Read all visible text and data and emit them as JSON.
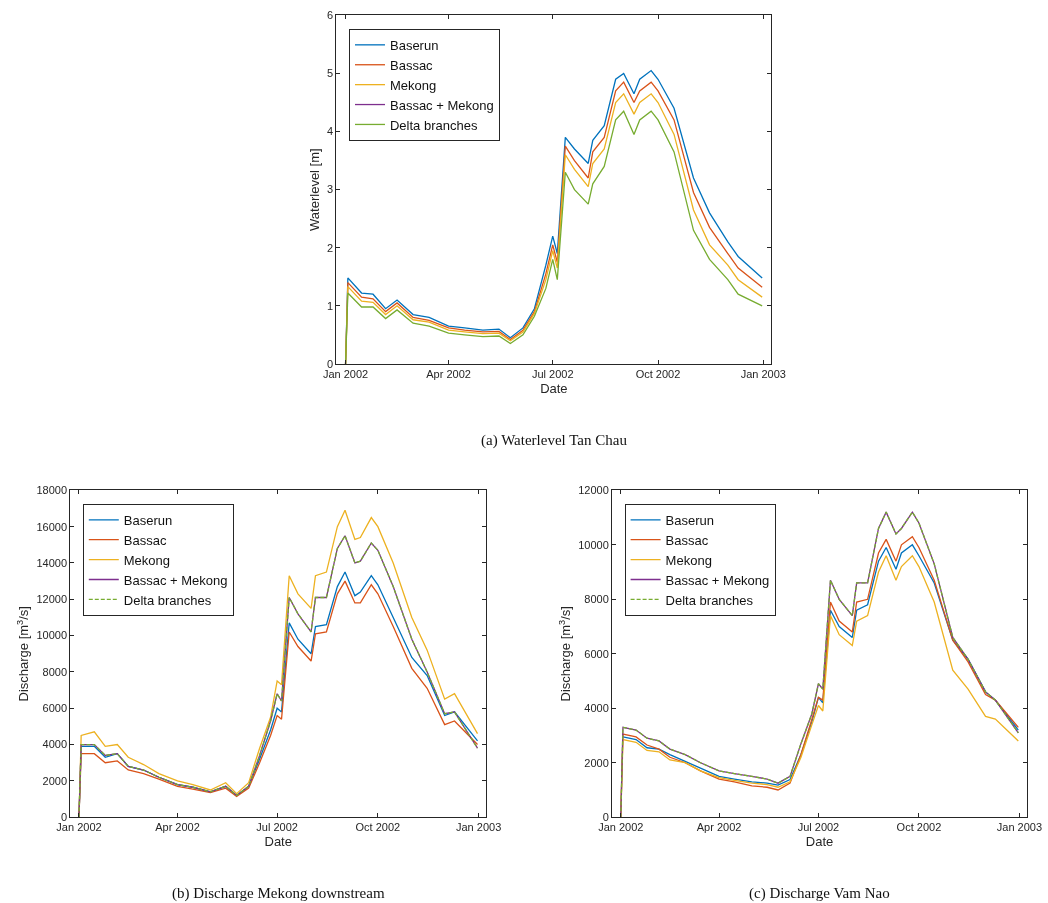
{
  "chart_data": [
    {
      "type": "line",
      "xlabel": "Date",
      "ylabel": "Waterlevel [m]",
      "annotations": [
        "(a) Waterlevel Tan Chau"
      ],
      "legend": "top left",
      "xlim": [
        "2001-12-24",
        "2003-01-08"
      ],
      "xticks": [
        {
          "value": "2002-01-01",
          "label": "Jan 2002"
        },
        {
          "value": "2002-04-01",
          "label": "Apr 2002"
        },
        {
          "value": "2002-07-01",
          "label": "Jul 2002"
        },
        {
          "value": "2002-10-01",
          "label": "Oct 2002"
        },
        {
          "value": "2003-01-01",
          "label": "Jan 2003"
        }
      ],
      "ylim": [
        0,
        6
      ],
      "yticks": [
        0,
        1,
        2,
        3,
        4,
        5,
        6
      ],
      "x": [
        "2002-01-01",
        "2002-01-03",
        "2002-01-15",
        "2002-01-25",
        "2002-02-05",
        "2002-02-15",
        "2002-03-01",
        "2002-03-15",
        "2002-04-01",
        "2002-04-15",
        "2002-05-01",
        "2002-05-15",
        "2002-05-25",
        "2002-06-05",
        "2002-06-15",
        "2002-06-25",
        "2002-07-01",
        "2002-07-05",
        "2002-07-12",
        "2002-07-20",
        "2002-08-01",
        "2002-08-05",
        "2002-08-15",
        "2002-08-25",
        "2002-09-01",
        "2002-09-10",
        "2002-09-15",
        "2002-09-25",
        "2002-10-01",
        "2002-10-15",
        "2002-11-01",
        "2002-11-15",
        "2002-12-01",
        "2002-12-10",
        "2002-12-31"
      ],
      "series": [
        {
          "name": "Baserun",
          "color": "#0072bd",
          "values": [
            0,
            1.48,
            1.22,
            1.2,
            0.95,
            1.1,
            0.85,
            0.8,
            0.65,
            0.62,
            0.58,
            0.6,
            0.45,
            0.62,
            0.95,
            1.7,
            2.2,
            1.9,
            3.9,
            3.7,
            3.45,
            3.85,
            4.1,
            4.9,
            5.0,
            4.65,
            4.9,
            5.05,
            4.9,
            4.4,
            3.2,
            2.6,
            2.1,
            1.85,
            1.48
          ]
        },
        {
          "name": "Bassac",
          "color": "#d95319",
          "values": [
            0,
            1.4,
            1.15,
            1.12,
            0.9,
            1.05,
            0.8,
            0.75,
            0.62,
            0.58,
            0.55,
            0.56,
            0.42,
            0.58,
            0.9,
            1.55,
            2.05,
            1.75,
            3.75,
            3.5,
            3.2,
            3.65,
            3.9,
            4.7,
            4.85,
            4.5,
            4.7,
            4.85,
            4.7,
            4.2,
            2.95,
            2.35,
            1.9,
            1.65,
            1.32
          ]
        },
        {
          "name": "Mekong",
          "color": "#edb120",
          "values": [
            0,
            1.33,
            1.08,
            1.06,
            0.85,
            1.0,
            0.76,
            0.72,
            0.58,
            0.55,
            0.52,
            0.53,
            0.4,
            0.55,
            0.87,
            1.45,
            1.95,
            1.65,
            3.6,
            3.35,
            3.05,
            3.45,
            3.7,
            4.5,
            4.65,
            4.3,
            4.5,
            4.65,
            4.5,
            3.95,
            2.65,
            2.05,
            1.7,
            1.45,
            1.15
          ]
        },
        {
          "name": "Bassac + Mekong",
          "color": "#7e2f8e",
          "values": [
            null,
            null,
            null,
            null,
            null,
            null,
            null,
            null,
            null,
            null,
            null,
            null,
            null,
            null,
            null,
            null,
            null,
            null,
            null,
            null,
            null,
            null,
            null,
            null,
            null,
            null,
            null,
            null,
            null,
            null,
            null,
            null,
            null,
            null,
            null
          ]
        },
        {
          "name": "Delta branches",
          "color": "#77ac30",
          "values": [
            0,
            1.22,
            0.98,
            0.98,
            0.78,
            0.93,
            0.7,
            0.65,
            0.53,
            0.5,
            0.47,
            0.48,
            0.35,
            0.5,
            0.82,
            1.3,
            1.8,
            1.45,
            3.3,
            3.0,
            2.75,
            3.1,
            3.4,
            4.2,
            4.35,
            3.95,
            4.2,
            4.35,
            4.2,
            3.65,
            2.3,
            1.8,
            1.45,
            1.2,
            1.0
          ]
        }
      ]
    },
    {
      "type": "line",
      "xlabel": "Date",
      "ylabel": "Discharge [m$^{3}$/s]",
      "annotations": [
        "(b) Discharge Mekong downstream"
      ],
      "legend": "top left",
      "xlim": [
        "2001-12-24",
        "2003-01-08"
      ],
      "xticks": [
        {
          "value": "2002-01-01",
          "label": "Jan 2002"
        },
        {
          "value": "2002-04-01",
          "label": "Apr 2002"
        },
        {
          "value": "2002-07-01",
          "label": "Jul 2002"
        },
        {
          "value": "2002-10-01",
          "label": "Oct 2002"
        },
        {
          "value": "2003-01-01",
          "label": "Jan 2003"
        }
      ],
      "ylim": [
        0,
        18000
      ],
      "yticks": [
        0,
        2000,
        4000,
        6000,
        8000,
        10000,
        12000,
        14000,
        16000,
        18000
      ],
      "x": [
        "2002-01-01",
        "2002-01-03",
        "2002-01-15",
        "2002-01-25",
        "2002-02-05",
        "2002-02-15",
        "2002-03-01",
        "2002-03-15",
        "2002-04-01",
        "2002-04-15",
        "2002-05-01",
        "2002-05-15",
        "2002-05-25",
        "2002-06-05",
        "2002-06-15",
        "2002-06-25",
        "2002-07-01",
        "2002-07-05",
        "2002-07-12",
        "2002-07-20",
        "2002-08-01",
        "2002-08-05",
        "2002-08-15",
        "2002-08-25",
        "2002-09-01",
        "2002-09-10",
        "2002-09-15",
        "2002-09-25",
        "2002-10-01",
        "2002-10-15",
        "2002-11-01",
        "2002-11-15",
        "2002-12-01",
        "2002-12-10",
        "2002-12-31"
      ],
      "series": [
        {
          "name": "Baserun",
          "color": "#0072bd",
          "values": [
            0,
            3900,
            3900,
            3300,
            3500,
            2800,
            2600,
            2200,
            1800,
            1650,
            1400,
            1700,
            1200,
            1700,
            3200,
            4800,
            6000,
            5800,
            10700,
            9800,
            9000,
            10500,
            10600,
            12700,
            13500,
            12200,
            12400,
            13300,
            12800,
            11000,
            8800,
            7800,
            5600,
            5800,
            4200
          ]
        },
        {
          "name": "Bassac",
          "color": "#d95319",
          "values": [
            0,
            3500,
            3500,
            3000,
            3100,
            2600,
            2400,
            2100,
            1700,
            1550,
            1350,
            1600,
            1150,
            1600,
            3000,
            4500,
            5600,
            5400,
            10200,
            9400,
            8600,
            10100,
            10200,
            12300,
            13000,
            11800,
            11800,
            12800,
            12300,
            10500,
            8200,
            7100,
            5100,
            5300,
            4000
          ]
        },
        {
          "name": "Mekong",
          "color": "#edb120",
          "values": [
            0,
            4500,
            4700,
            3900,
            4000,
            3300,
            2900,
            2400,
            2000,
            1800,
            1500,
            1900,
            1300,
            1900,
            3800,
            5500,
            7500,
            7300,
            13300,
            12300,
            11500,
            13300,
            13500,
            16000,
            16900,
            15300,
            15400,
            16500,
            16000,
            14000,
            11000,
            9200,
            6500,
            6800,
            4600
          ]
        },
        {
          "name": "Bassac + Mekong",
          "color": "#7e2f8e",
          "values": [
            0,
            4000,
            4000,
            3400,
            3500,
            2800,
            2600,
            2200,
            1800,
            1650,
            1400,
            1700,
            1200,
            1700,
            3400,
            5300,
            6800,
            6400,
            12100,
            11200,
            10200,
            12100,
            12100,
            14800,
            15500,
            14000,
            14100,
            15100,
            14700,
            12700,
            9800,
            8000,
            5700,
            5800,
            3800
          ]
        },
        {
          "name": "Delta branches",
          "color": "#77ac30",
          "line_style": "dashed",
          "values": [
            0,
            4000,
            4000,
            3400,
            3500,
            2800,
            2600,
            2200,
            1800,
            1650,
            1400,
            1700,
            1200,
            1700,
            3400,
            5300,
            6800,
            6400,
            12100,
            11200,
            10200,
            12100,
            12100,
            14800,
            15500,
            14000,
            14100,
            15100,
            14700,
            12700,
            9800,
            8000,
            5700,
            5800,
            3800
          ]
        }
      ]
    },
    {
      "type": "line",
      "xlabel": "Date",
      "ylabel": "Discharge [m$^{3}$/s]",
      "annotations": [
        "(c) Discharge Vam Nao"
      ],
      "legend": "top left",
      "xlim": [
        "2001-12-24",
        "2003-01-08"
      ],
      "xticks": [
        {
          "value": "2002-01-01",
          "label": "Jan 2002"
        },
        {
          "value": "2002-04-01",
          "label": "Apr 2002"
        },
        {
          "value": "2002-07-01",
          "label": "Jul 2002"
        },
        {
          "value": "2002-10-01",
          "label": "Oct 2002"
        },
        {
          "value": "2003-01-01",
          "label": "Jan 2003"
        }
      ],
      "ylim": [
        0,
        12000
      ],
      "yticks": [
        0,
        2000,
        4000,
        6000,
        8000,
        10000,
        12000
      ],
      "x": [
        "2002-01-01",
        "2002-01-03",
        "2002-01-15",
        "2002-01-25",
        "2002-02-05",
        "2002-02-15",
        "2002-03-01",
        "2002-03-15",
        "2002-04-01",
        "2002-04-15",
        "2002-05-01",
        "2002-05-15",
        "2002-05-25",
        "2002-06-05",
        "2002-06-15",
        "2002-06-25",
        "2002-07-01",
        "2002-07-05",
        "2002-07-12",
        "2002-07-20",
        "2002-08-01",
        "2002-08-05",
        "2002-08-15",
        "2002-08-25",
        "2002-09-01",
        "2002-09-10",
        "2002-09-15",
        "2002-09-25",
        "2002-10-01",
        "2002-10-15",
        "2002-11-01",
        "2002-11-15",
        "2002-12-01",
        "2002-12-10",
        "2002-12-31"
      ],
      "series": [
        {
          "name": "Baserun",
          "color": "#0072bd",
          "values": [
            null,
            2950,
            2850,
            2550,
            2500,
            2300,
            2050,
            1800,
            1500,
            1400,
            1300,
            1250,
            1180,
            1380,
            2300,
            3500,
            4400,
            4200,
            7600,
            7000,
            6600,
            7600,
            7800,
            9400,
            9900,
            9100,
            9700,
            10000,
            9600,
            8600,
            6500,
            5800,
            4600,
            4300,
            3200
          ]
        },
        {
          "name": "Bassac",
          "color": "#d95319",
          "values": [
            0,
            3050,
            2950,
            2650,
            2500,
            2200,
            2000,
            1700,
            1400,
            1300,
            1150,
            1100,
            1000,
            1250,
            2300,
            3600,
            4400,
            4300,
            7900,
            7200,
            6800,
            7900,
            8000,
            9700,
            10200,
            9400,
            10000,
            10300,
            9900,
            8700,
            6500,
            5700,
            4500,
            4300,
            3300
          ]
        },
        {
          "name": "Mekong",
          "color": "#edb120",
          "values": [
            0,
            2850,
            2750,
            2450,
            2400,
            2100,
            2000,
            1700,
            1450,
            1350,
            1250,
            1200,
            1100,
            1300,
            2200,
            3400,
            4100,
            3900,
            7400,
            6700,
            6300,
            7200,
            7400,
            9000,
            9600,
            8700,
            9200,
            9600,
            9200,
            7900,
            5400,
            4700,
            3700,
            3600,
            2800
          ]
        },
        {
          "name": "Bassac + Mekong",
          "color": "#7e2f8e",
          "values": [
            0,
            3300,
            3200,
            2900,
            2800,
            2500,
            2300,
            2000,
            1700,
            1600,
            1500,
            1400,
            1250,
            1500,
            2700,
            3800,
            4900,
            4700,
            8700,
            8000,
            7400,
            8600,
            8600,
            10600,
            11200,
            10400,
            10600,
            11200,
            10800,
            9300,
            6600,
            5800,
            4600,
            4300,
            3100
          ]
        },
        {
          "name": "Delta branches",
          "color": "#77ac30",
          "line_style": "dashed",
          "values": [
            0,
            3300,
            3200,
            2900,
            2800,
            2500,
            2300,
            2000,
            1700,
            1600,
            1500,
            1400,
            1250,
            1500,
            2700,
            3800,
            4900,
            4700,
            8700,
            8000,
            7400,
            8600,
            8600,
            10600,
            11200,
            10400,
            10600,
            11200,
            10800,
            9300,
            6600,
            5800,
            4600,
            4300,
            3100
          ]
        }
      ]
    }
  ]
}
